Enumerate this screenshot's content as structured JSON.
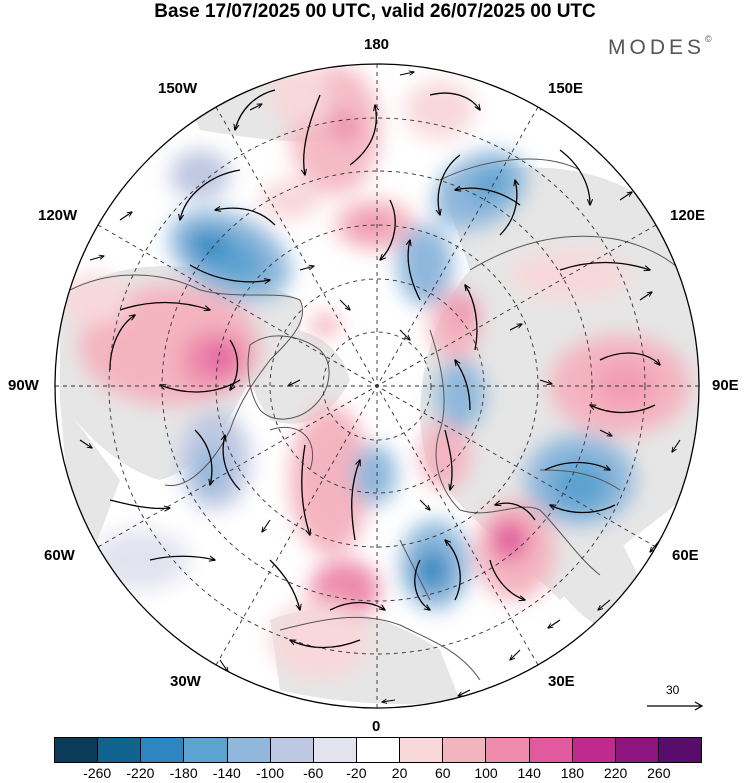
{
  "title": "Base 17/07/2025 00 UTC, valid 26/07/2025 00 UTC",
  "brand": {
    "name": "MODES",
    "mark": "©"
  },
  "longitude_labels": {
    "top": "180",
    "bottom": "0",
    "left": "90W",
    "right": "90E",
    "upper_left_outer": "120W",
    "upper_left_inner": "150W",
    "upper_right_inner": "150E",
    "upper_right_outer": "120E",
    "lower_left_outer": "60W",
    "lower_left_inner": "30W",
    "lower_right_inner": "30E",
    "lower_right_outer": "60E"
  },
  "reference_vector": {
    "value": "30"
  },
  "colorbar": {
    "colors": [
      "#0a3c5a",
      "#10628f",
      "#2e86c0",
      "#5ba3d0",
      "#8fb8dc",
      "#bfc8e2",
      "#e3e3f0",
      "#ffffff",
      "#f8d8da",
      "#f4b4bf",
      "#ee8cad",
      "#e25a9e",
      "#c02a8e",
      "#8c1580",
      "#5a0c6e"
    ],
    "ticks": [
      "-260",
      "-220",
      "-180",
      "-140",
      "-100",
      "-60",
      "-20",
      "20",
      "60",
      "100",
      "140",
      "180",
      "220",
      "260"
    ]
  }
}
